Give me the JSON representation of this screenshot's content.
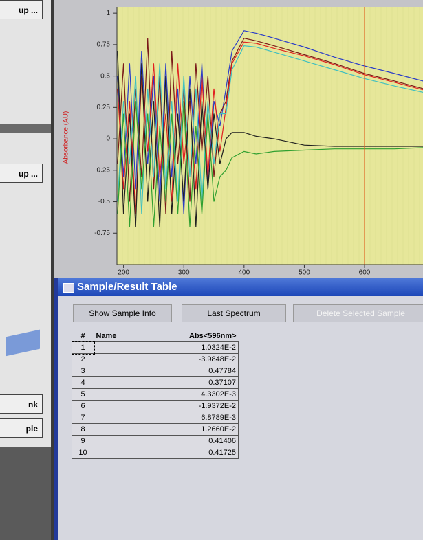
{
  "left_panel": {
    "buttons": [
      "up ...",
      "up ...",
      "nk",
      "ple"
    ]
  },
  "chart_data": {
    "type": "line",
    "y_label": "Absorbance (AU)",
    "x": [
      190,
      200,
      210,
      220,
      230,
      240,
      250,
      260,
      270,
      280,
      290,
      300,
      310,
      320,
      330,
      340,
      350,
      360,
      370,
      380,
      400,
      420,
      450,
      500,
      550,
      600,
      650,
      697
    ],
    "series": [
      {
        "color": "#2a3cc8",
        "values": [
          0.5,
          -0.3,
          0.6,
          -0.4,
          0.7,
          -0.2,
          0.5,
          -0.5,
          0.6,
          -0.3,
          0.4,
          -0.6,
          0.5,
          -0.2,
          0.6,
          -0.4,
          0.3,
          0.1,
          0.4,
          0.7,
          0.86,
          0.84,
          0.8,
          0.73,
          0.65,
          0.58,
          0.52,
          0.46
        ]
      },
      {
        "color": "#7a1a1a",
        "values": [
          -0.2,
          0.6,
          -0.5,
          0.4,
          -0.3,
          0.8,
          -0.4,
          0.5,
          -0.6,
          0.7,
          -0.2,
          0.4,
          -0.5,
          0.6,
          -0.1,
          0.5,
          -0.3,
          0.2,
          0.3,
          0.62,
          0.8,
          0.78,
          0.74,
          0.67,
          0.6,
          0.52,
          0.46,
          0.4
        ]
      },
      {
        "color": "#e02020",
        "values": [
          0.4,
          -0.4,
          0.3,
          -0.6,
          0.5,
          -0.1,
          0.6,
          -0.3,
          0.2,
          -0.5,
          0.6,
          -0.2,
          0.3,
          -0.4,
          0.5,
          -0.3,
          0.4,
          -0.1,
          0.25,
          0.6,
          0.77,
          0.76,
          0.72,
          0.66,
          0.59,
          0.51,
          0.45,
          0.39
        ]
      },
      {
        "color": "#40c0c0",
        "values": [
          -0.5,
          0.3,
          -0.2,
          0.5,
          -0.6,
          0.4,
          -0.3,
          0.6,
          -0.4,
          0.3,
          -0.5,
          0.5,
          -0.3,
          0.4,
          -0.5,
          0.3,
          -0.2,
          0.2,
          0.2,
          0.55,
          0.74,
          0.73,
          0.69,
          0.62,
          0.55,
          0.48,
          0.42,
          0.37
        ]
      },
      {
        "color": "#202020",
        "values": [
          0.7,
          -0.6,
          0.2,
          -0.7,
          0.6,
          -0.5,
          0.3,
          -0.7,
          0.5,
          -0.6,
          0.2,
          -0.5,
          0.4,
          -0.7,
          0.3,
          -0.4,
          0.2,
          -0.2,
          0.0,
          0.05,
          0.05,
          0.02,
          0.0,
          -0.05,
          -0.06,
          -0.06,
          -0.06,
          -0.06
        ]
      },
      {
        "color": "#30a030",
        "values": [
          -0.6,
          0.2,
          -0.7,
          0.3,
          -0.4,
          0.2,
          -0.7,
          0.1,
          -0.5,
          0.2,
          -0.6,
          0.3,
          -0.7,
          0.1,
          -0.6,
          0.2,
          -0.5,
          -0.3,
          -0.25,
          -0.15,
          -0.1,
          -0.12,
          -0.1,
          -0.09,
          -0.08,
          -0.08,
          -0.08,
          -0.07
        ]
      }
    ],
    "xlim": [
      189,
      697
    ],
    "ylim": [
      -1,
      1.05
    ],
    "xticks": [
      200,
      300,
      400,
      500,
      600
    ],
    "yticks": [
      1,
      0.75,
      0.5,
      0.25,
      0,
      -0.25,
      -0.5,
      -0.75
    ],
    "cursor_x": 600,
    "cursor_color": "#e06020",
    "plot_background": "#e6e79a"
  },
  "sample_table": {
    "title": "Sample/Result Table",
    "buttons": [
      "Show Sample Info",
      "Last Spectrum",
      "Delete Selected Sample"
    ],
    "columns": [
      "#",
      "Name",
      "Abs<596nm>"
    ],
    "rows": [
      {
        "n": 1,
        "abs": "1.0324E-2"
      },
      {
        "n": 2,
        "abs": "-3.9848E-2"
      },
      {
        "n": 3,
        "abs": "0.47784"
      },
      {
        "n": 4,
        "abs": "0.37107"
      },
      {
        "n": 5,
        "abs": "4.3302E-3"
      },
      {
        "n": 6,
        "abs": "-1.9372E-2"
      },
      {
        "n": 7,
        "abs": "6.8789E-3"
      },
      {
        "n": 8,
        "abs": "1.2660E-2"
      },
      {
        "n": 9,
        "abs": "0.41406"
      },
      {
        "n": 10,
        "abs": "0.41725"
      }
    ]
  }
}
